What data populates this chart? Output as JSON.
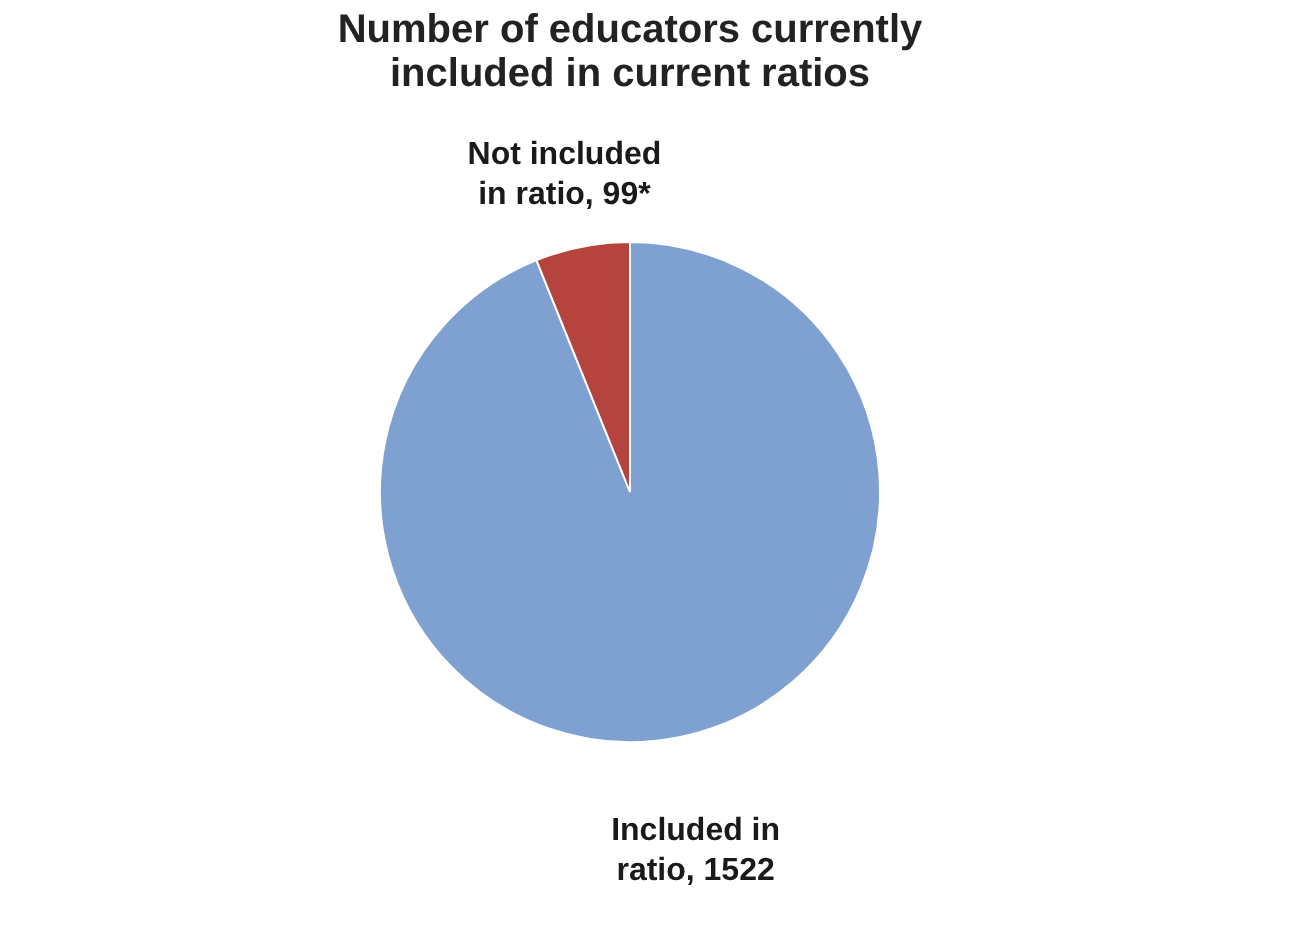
{
  "chart_data": {
    "type": "pie",
    "title": "Number of educators currently included in current ratios",
    "categories": [
      "Included in ratio, 1522",
      "Not included in ratio, 99*"
    ],
    "values": [
      1522,
      99
    ],
    "colors": [
      "#7ea1d1",
      "#b5443f"
    ],
    "legend": false
  }
}
